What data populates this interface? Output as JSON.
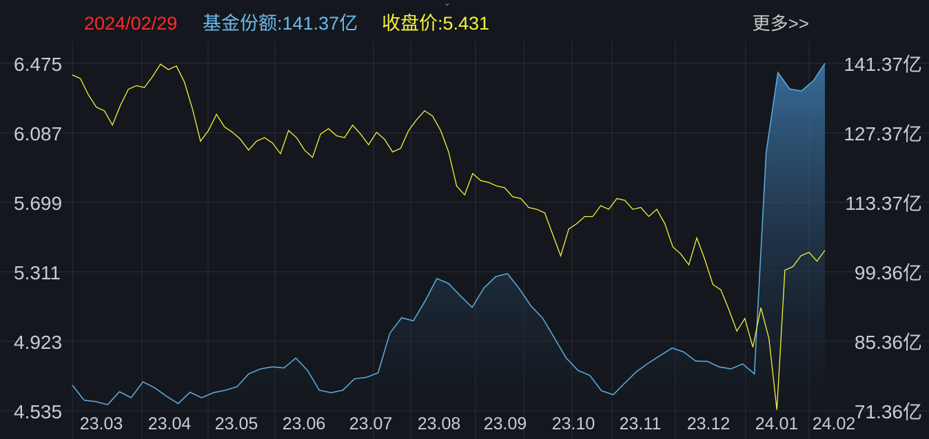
{
  "header": {
    "date": "2024/02/29",
    "fund_share_label": "基金份额:141.37亿",
    "close_price_label": "收盘价:5.431",
    "more_link": "更多>>"
  },
  "colors": {
    "background": "#14171d",
    "grid": "#2c3038",
    "date_text": "#ff2a2a",
    "share_text": "#6cb9ec",
    "price_text": "#f6f23c",
    "price_line": "#f6f23c",
    "share_line": "#5aa8dc",
    "share_fill_top": "#3f7bb0",
    "share_fill_bottom": "#141a22"
  },
  "icons": {
    "collapse_toggle": "chevron-down-icon"
  },
  "chart_data": {
    "type": "line",
    "title": "",
    "x_tick_labels": [
      "23.03",
      "23.04",
      "23.05",
      "23.06",
      "23.07",
      "23.08",
      "23.09",
      "23.10",
      "23.11",
      "23.12",
      "24.01",
      "24.02"
    ],
    "left_axis": {
      "ticks": [
        "6.475",
        "6.087",
        "5.699",
        "5.311",
        "4.923",
        "4.535"
      ],
      "range": [
        4.535,
        6.475
      ]
    },
    "right_axis": {
      "ticks": [
        "141.37亿",
        "127.37亿",
        "113.37亿",
        "99.36亿",
        "85.36亿",
        "71.36亿"
      ],
      "range": [
        71.36,
        141.37
      ]
    },
    "grid": true,
    "series": [
      {
        "axis": "left",
        "type": "line",
        "values": [
          6.41,
          6.39,
          6.3,
          6.23,
          6.21,
          6.13,
          6.24,
          6.33,
          6.35,
          6.34,
          6.4,
          6.47,
          6.44,
          6.46,
          6.37,
          6.22,
          6.04,
          6.1,
          6.19,
          6.12,
          6.09,
          6.05,
          5.99,
          6.04,
          6.06,
          6.03,
          5.97,
          6.1,
          6.06,
          5.99,
          5.95,
          6.08,
          6.11,
          6.07,
          6.06,
          6.13,
          6.08,
          6.02,
          6.09,
          6.05,
          5.98,
          6.0,
          6.1,
          6.16,
          6.21,
          6.18,
          6.1,
          5.98,
          5.79,
          5.74,
          5.86,
          5.82,
          5.81,
          5.79,
          5.78,
          5.73,
          5.72,
          5.67,
          5.66,
          5.64,
          5.52,
          5.4,
          5.55,
          5.58,
          5.62,
          5.62,
          5.68,
          5.66,
          5.72,
          5.71,
          5.66,
          5.67,
          5.62,
          5.66,
          5.58,
          5.45,
          5.41,
          5.35,
          5.5,
          5.38,
          5.24,
          5.21,
          5.1,
          4.98,
          5.05,
          4.89,
          5.11,
          4.94,
          4.54,
          5.32,
          5.34,
          5.4,
          5.42,
          5.37,
          5.431
        ]
      },
      {
        "axis": "right",
        "type": "area",
        "values": [
          76.5,
          73.5,
          73.2,
          72.6,
          75.2,
          74.0,
          77.2,
          76.0,
          74.3,
          72.8,
          75.1,
          74.0,
          75.0,
          75.5,
          76.2,
          78.8,
          79.8,
          80.2,
          80.0,
          82.0,
          79.5,
          75.5,
          75.0,
          75.5,
          77.8,
          78.1,
          79.0,
          87.0,
          90.1,
          89.5,
          93.5,
          98.0,
          97.0,
          94.5,
          92.2,
          96.1,
          98.4,
          99.0,
          96.0,
          92.5,
          90.0,
          86.0,
          82.0,
          79.5,
          78.5,
          75.4,
          74.6,
          77.0,
          79.3,
          81.0,
          82.5,
          84.0,
          83.2,
          81.4,
          81.3,
          80.2,
          79.8,
          80.8,
          78.8,
          123.4,
          139.5,
          136.2,
          135.8,
          137.8,
          141.37
        ]
      }
    ]
  }
}
